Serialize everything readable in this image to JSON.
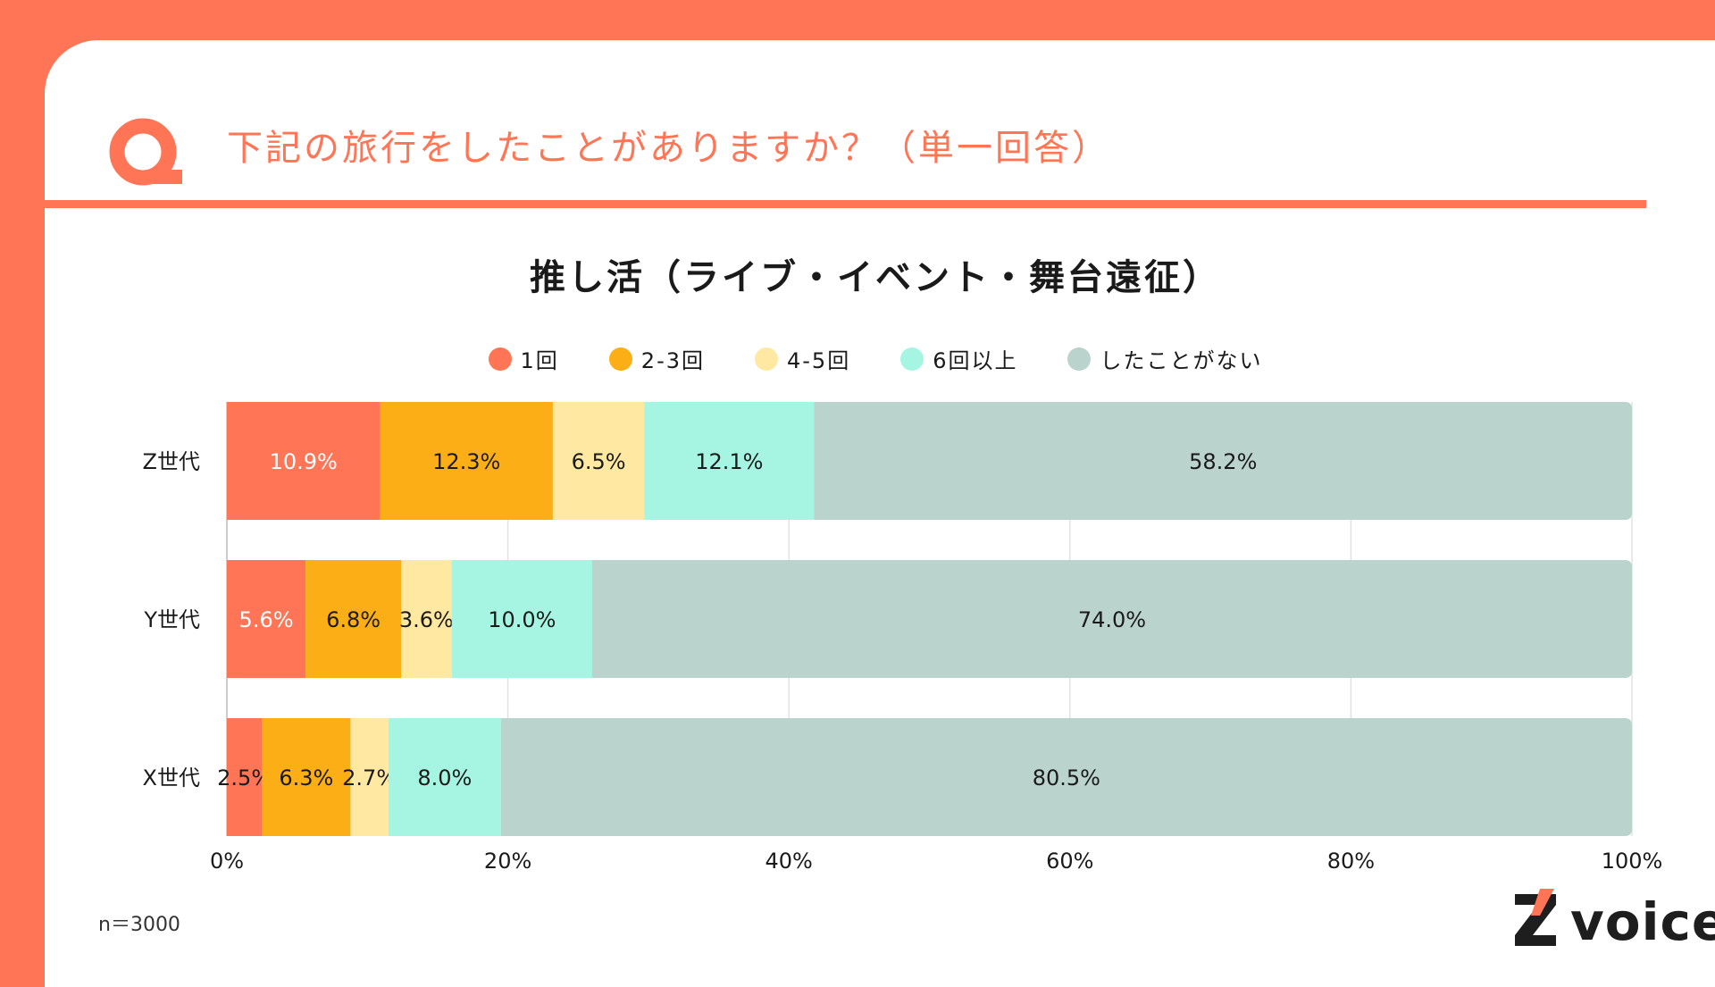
{
  "header": {
    "question": "下記の旅行をしたことがありますか？（単一回答）",
    "q_letter": "Q"
  },
  "footer": {
    "sample": "n＝3000",
    "brand": "voice",
    "brand_logo_letter": "Z"
  },
  "colors": {
    "accent": "#FF7555",
    "series": [
      "#FF7555",
      "#FCAE16",
      "#FFE9A2",
      "#A6F5E3",
      "#BAD3CC"
    ]
  },
  "chart_data": {
    "type": "bar",
    "orientation": "horizontal",
    "stacked": true,
    "title": "推し活（ライブ・イベント・舞台遠征）",
    "categories": [
      "Z世代",
      "Y世代",
      "X世代"
    ],
    "series": [
      {
        "name": "1回",
        "values": [
          10.9,
          5.6,
          2.5
        ],
        "labels": [
          "10.9%",
          "5.6%",
          "2.5%"
        ]
      },
      {
        "name": "2-3回",
        "values": [
          12.3,
          6.8,
          6.3
        ],
        "labels": [
          "12.3%",
          "6.8%",
          "6.3%"
        ]
      },
      {
        "name": "4-5回",
        "values": [
          6.5,
          3.6,
          2.7
        ],
        "labels": [
          "6.5%",
          "3.6%",
          "2.7%"
        ]
      },
      {
        "name": "6回以上",
        "values": [
          12.1,
          10.0,
          8.0
        ],
        "labels": [
          "12.1%",
          "10.0%",
          "8.0%"
        ]
      },
      {
        "name": "したことがない",
        "values": [
          58.2,
          74.0,
          80.5
        ],
        "labels": [
          "58.2%",
          "74.0%",
          "80.5%"
        ]
      }
    ],
    "xlim": [
      0,
      100
    ],
    "xticks": [
      "0%",
      "20%",
      "40%",
      "60%",
      "80%",
      "100%"
    ],
    "grid": true,
    "legend": "top-center"
  }
}
